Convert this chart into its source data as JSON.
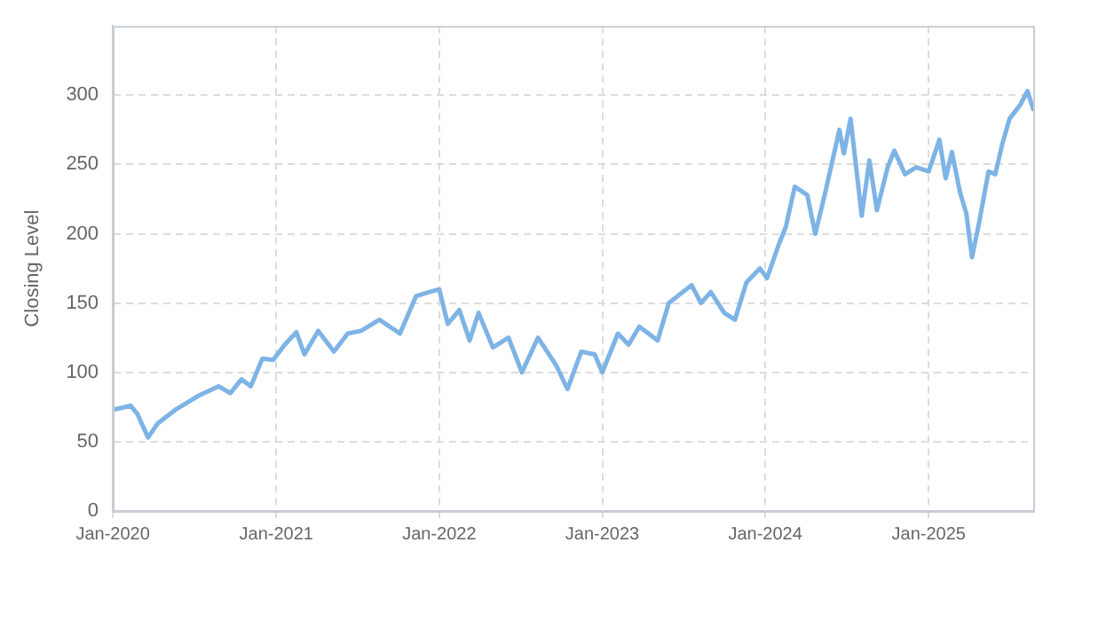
{
  "chart_data": {
    "type": "line",
    "ylabel": "Closing Level",
    "x": [
      "2020-01-01",
      "2020-02-10",
      "2020-02-25",
      "2020-03-20",
      "2020-04-10",
      "2020-05-20",
      "2020-07-10",
      "2020-08-25",
      "2020-09-20",
      "2020-10-15",
      "2020-11-05",
      "2020-12-01",
      "2020-12-25",
      "2021-01-20",
      "2021-02-15",
      "2021-03-05",
      "2021-04-05",
      "2021-05-10",
      "2021-06-10",
      "2021-07-10",
      "2021-08-20",
      "2021-10-05",
      "2021-11-10",
      "2021-12-10",
      "2022-01-01",
      "2022-01-20",
      "2022-02-15",
      "2022-03-10",
      "2022-03-30",
      "2022-05-01",
      "2022-06-05",
      "2022-07-05",
      "2022-08-10",
      "2022-09-20",
      "2022-10-15",
      "2022-11-15",
      "2022-12-15",
      "2023-01-01",
      "2023-02-05",
      "2023-03-01",
      "2023-03-25",
      "2023-05-05",
      "2023-05-30",
      "2023-07-20",
      "2023-08-10",
      "2023-09-01",
      "2023-10-01",
      "2023-10-25",
      "2023-11-20",
      "2023-12-20",
      "2024-01-05",
      "2024-02-01",
      "2024-02-16",
      "2024-03-07",
      "2024-04-04",
      "2024-04-22",
      "2024-05-13",
      "2024-06-15",
      "2024-06-25",
      "2024-07-10",
      "2024-08-04",
      "2024-08-21",
      "2024-09-07",
      "2024-10-01",
      "2024-10-16",
      "2024-11-09",
      "2024-12-04",
      "2025-01-01",
      "2025-01-25",
      "2025-02-08",
      "2025-02-22",
      "2025-03-12",
      "2025-03-26",
      "2025-04-08",
      "2025-04-22",
      "2025-05-15",
      "2025-05-30",
      "2025-06-15",
      "2025-07-01",
      "2025-07-25",
      "2025-08-10",
      "2025-08-23"
    ],
    "series": [
      {
        "color": "#7eb3e6",
        "values": [
          73,
          76,
          70,
          53,
          63,
          73,
          83,
          90,
          85,
          95,
          90,
          110,
          109,
          120,
          129,
          113,
          130,
          115,
          128,
          130,
          138,
          128,
          155,
          158,
          160,
          135,
          145,
          123,
          143,
          118,
          125,
          100,
          125,
          105,
          88,
          115,
          113,
          100,
          128,
          120,
          133,
          123,
          150,
          163,
          150,
          158,
          143,
          138,
          165,
          175,
          168,
          193,
          205,
          234,
          228,
          200,
          228,
          275,
          258,
          283,
          213,
          253,
          217,
          248,
          260,
          243,
          248,
          245,
          268,
          240,
          259,
          230,
          215,
          183,
          205,
          245,
          243,
          265,
          283,
          293,
          303,
          290
        ]
      }
    ],
    "xlim": [
      "2020-01-01",
      "2025-08-23"
    ],
    "xticks": [
      {
        "value": "2020-01",
        "label": "Jan-2020"
      },
      {
        "value": "2021-01",
        "label": "Jan-2021"
      },
      {
        "value": "2022-01",
        "label": "Jan-2022"
      },
      {
        "value": "2023-01",
        "label": "Jan-2023"
      },
      {
        "value": "2024-01",
        "label": "Jan-2024"
      },
      {
        "value": "2025-01",
        "label": "Jan-2025"
      }
    ],
    "ylim": [
      0,
      350
    ],
    "yticks": [
      0,
      50,
      100,
      150,
      200,
      250,
      300
    ],
    "grid": true,
    "legend": false,
    "marker": "none",
    "line_style": "solid"
  }
}
